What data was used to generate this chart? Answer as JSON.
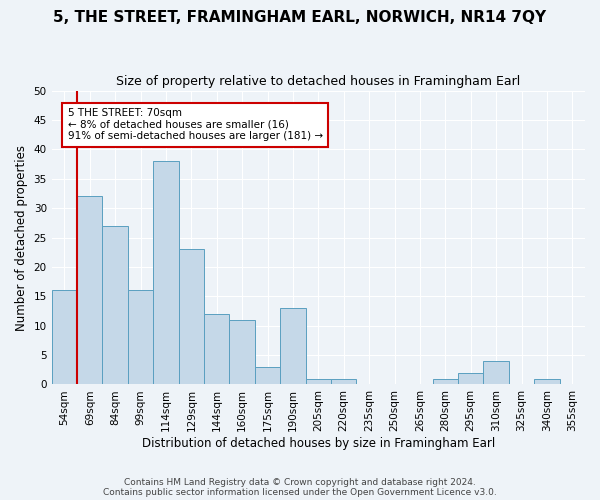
{
  "title": "5, THE STREET, FRAMINGHAM EARL, NORWICH, NR14 7QY",
  "subtitle": "Size of property relative to detached houses in Framingham Earl",
  "xlabel": "Distribution of detached houses by size in Framingham Earl",
  "ylabel": "Number of detached properties",
  "categories": [
    "54sqm",
    "69sqm",
    "84sqm",
    "99sqm",
    "114sqm",
    "129sqm",
    "144sqm",
    "160sqm",
    "175sqm",
    "190sqm",
    "205sqm",
    "220sqm",
    "235sqm",
    "250sqm",
    "265sqm",
    "280sqm",
    "295sqm",
    "310sqm",
    "325sqm",
    "340sqm",
    "355sqm"
  ],
  "values": [
    16,
    32,
    27,
    16,
    38,
    23,
    12,
    11,
    3,
    13,
    1,
    1,
    0,
    0,
    0,
    1,
    2,
    4,
    0,
    1,
    0
  ],
  "bar_color": "#c5d8e8",
  "bar_edge_color": "#5a9fc0",
  "highlight_color": "#cc0000",
  "annotation_text": "5 THE STREET: 70sqm\n← 8% of detached houses are smaller (16)\n91% of semi-detached houses are larger (181) →",
  "annotation_box_color": "#ffffff",
  "annotation_box_edge": "#cc0000",
  "ylim": [
    0,
    50
  ],
  "yticks": [
    0,
    5,
    10,
    15,
    20,
    25,
    30,
    35,
    40,
    45,
    50
  ],
  "footer1": "Contains HM Land Registry data © Crown copyright and database right 2024.",
  "footer2": "Contains public sector information licensed under the Open Government Licence v3.0.",
  "bg_color": "#eef3f8",
  "grid_color": "#ffffff",
  "title_fontsize": 11,
  "subtitle_fontsize": 9,
  "tick_fontsize": 7.5,
  "label_fontsize": 8.5
}
